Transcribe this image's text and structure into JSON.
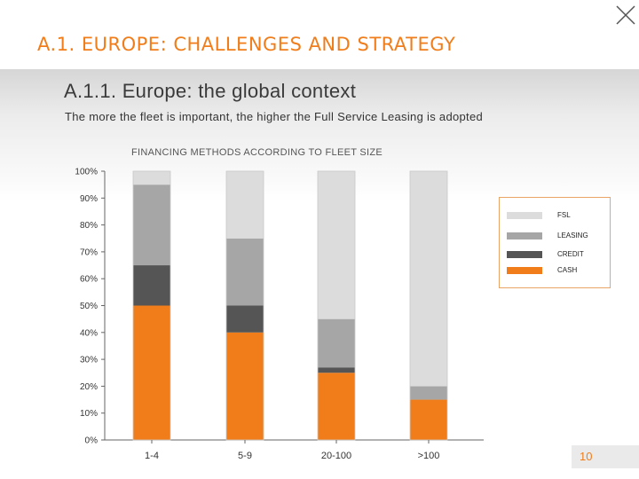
{
  "header": {
    "title": "A.1. EUROPE: CHALLENGES AND STRATEGY"
  },
  "subheader": {
    "title": "A.1.1. Europe: the global context",
    "caption": "The more the fleet is important, the higher the Full Service Leasing is adopted"
  },
  "page_number": "10",
  "colors": {
    "accent": "#f07d1a",
    "fsl": "#dcdcdc",
    "leasing": "#a6a6a6",
    "credit": "#555555",
    "cash": "#f07d1a"
  },
  "icons": {
    "close": "close-icon"
  },
  "chart_data": {
    "type": "bar",
    "stacked": true,
    "title": "FINANCING METHODS ACCORDING TO FLEET SIZE",
    "xlabel": "",
    "ylabel": "",
    "ylim": [
      0,
      100
    ],
    "yticks": [
      "0%",
      "10%",
      "20%",
      "30%",
      "40%",
      "50%",
      "60%",
      "70%",
      "80%",
      "90%",
      "100%"
    ],
    "categories": [
      "1-4",
      "5-9",
      "20-100",
      ">100"
    ],
    "series": [
      {
        "name": "CASH",
        "color": "#f07d1a",
        "values": [
          50,
          40,
          25,
          15
        ]
      },
      {
        "name": "CREDIT",
        "color": "#555555",
        "values": [
          15,
          10,
          2,
          0
        ]
      },
      {
        "name": "LEASING",
        "color": "#a6a6a6",
        "values": [
          30,
          25,
          18,
          5
        ]
      },
      {
        "name": "FSL",
        "color": "#dcdcdc",
        "values": [
          5,
          25,
          55,
          80
        ]
      }
    ],
    "legend": {
      "position": "right",
      "order": [
        "FSL",
        "LEASING",
        "CREDIT",
        "CASH"
      ]
    },
    "grid": false
  }
}
